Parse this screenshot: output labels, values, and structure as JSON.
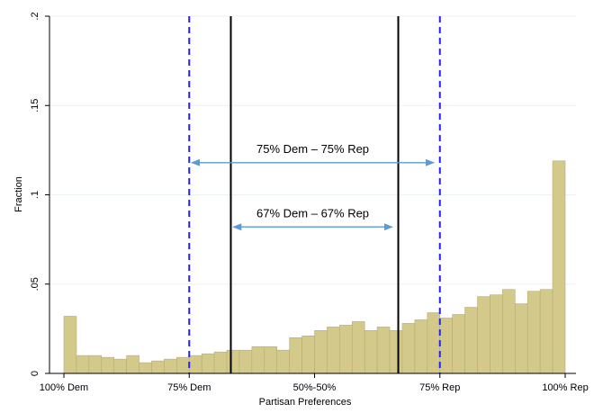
{
  "chart_data": {
    "type": "bar",
    "xlabel": "Partisan Preferences",
    "ylabel": "Fraction",
    "ylim": [
      0,
      0.2
    ],
    "xlim": [
      0,
      100
    ],
    "x_ticks": [
      {
        "value": 0,
        "label": "100% Dem"
      },
      {
        "value": 25,
        "label": "75% Dem"
      },
      {
        "value": 50,
        "label": "50%-50%"
      },
      {
        "value": 75,
        "label": "75% Rep"
      },
      {
        "value": 100,
        "label": "100% Rep"
      }
    ],
    "y_ticks": [
      {
        "value": 0,
        "label": "0"
      },
      {
        "value": 0.05,
        "label": ".05"
      },
      {
        "value": 0.1,
        "label": ".1"
      },
      {
        "value": 0.15,
        "label": ".15"
      },
      {
        "value": 0.2,
        "label": ".2"
      }
    ],
    "bin_width": 2.5,
    "values": [
      0.032,
      0.01,
      0.01,
      0.009,
      0.008,
      0.01,
      0.006,
      0.007,
      0.008,
      0.009,
      0.01,
      0.011,
      0.012,
      0.013,
      0.013,
      0.015,
      0.015,
      0.013,
      0.02,
      0.021,
      0.024,
      0.026,
      0.027,
      0.029,
      0.024,
      0.026,
      0.024,
      0.028,
      0.03,
      0.034,
      0.031,
      0.033,
      0.037,
      0.043,
      0.044,
      0.047,
      0.039,
      0.046,
      0.047,
      0.119
    ],
    "bar_color": "#d3c98a",
    "bar_edge_color": "#b8ad72",
    "vertical_lines": [
      {
        "x": 25,
        "style": "dashed",
        "color": "#2424e6"
      },
      {
        "x": 33.3,
        "style": "solid",
        "color": "#000000"
      },
      {
        "x": 66.7,
        "style": "solid",
        "color": "#000000"
      },
      {
        "x": 75,
        "style": "dashed",
        "color": "#2424e6"
      }
    ],
    "annotations": [
      {
        "text": "75% Dem – 75% Rep",
        "x_from": 25.5,
        "x_to": 73.8,
        "y": 0.118,
        "label_y": 0.1235,
        "arrow_color": "#5b9bd5"
      },
      {
        "text": "67% Dem – 67% Rep",
        "x_from": 33.8,
        "x_to": 65.5,
        "y": 0.082,
        "label_y": 0.0875,
        "arrow_color": "#5b9bd5"
      }
    ],
    "grid": "horizontal",
    "grid_color": "#eaf2f3"
  }
}
